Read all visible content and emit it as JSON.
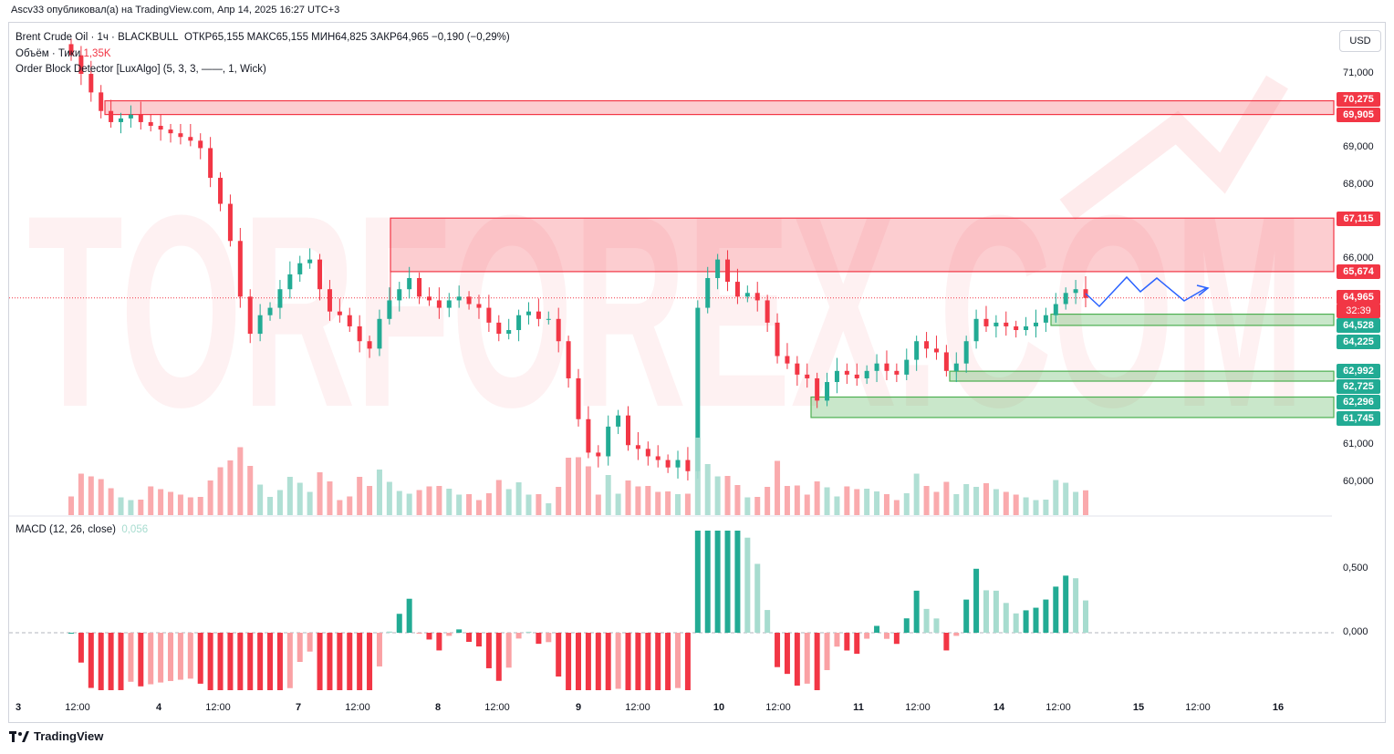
{
  "header": {
    "publisher": "Ascv33 опубликовал(а) на TradingView.com, Апр 14, 2025 16:27 UTC+3"
  },
  "legend": {
    "symbol": "Brent Crude Oil · 1ч · BLACKBULL",
    "ohlc": "ОТКР65,155  МАКС65,155  МИН64,825  ЗАКР64,965  −0,190 (−0,29%)",
    "volume_label": "Объём · Тики",
    "volume_value": "1,35K",
    "indicator": "Order Block Detector [LuxAlgo] (5, 3, 3, ——, 1, Wick)",
    "macd_label": "MACD (12, 26, close)",
    "macd_value": "0,056"
  },
  "currency": "USD",
  "watermark": "TORFOREX.COM",
  "footer": {
    "brand": "TradingView"
  },
  "price_tags": {
    "ob1_top": "70,275",
    "ob1_bottom": "69,905",
    "ob2_top": "67,115",
    "ob2_bottom": "65,674",
    "last_price": "64,965",
    "countdown": "32:39",
    "ob3_top": "64,528",
    "ob3_bottom": "64,225",
    "ob4_top": "62,992",
    "ob4_bottom": "62,725",
    "ob5_top": "62,296",
    "ob5_bottom": "61,745"
  },
  "colors": {
    "bull": "#22ab94",
    "bear": "#f23645",
    "bull_light": "#a7dccf",
    "bear_light": "#faa1a4",
    "ob_red": "#f23645",
    "ob_green": "#4caf50",
    "projection": "#2962ff"
  },
  "chart_data": {
    "type": "candlestick",
    "title": "Brent Crude Oil · 1ч · BLACKBULL",
    "y_axis": {
      "ticks": [
        "71,000",
        "69,000",
        "68,000",
        "66,000",
        "61,000",
        "60,000"
      ],
      "ylim": [
        59.1,
        71.8
      ]
    },
    "x_axis": {
      "ticks": [
        "3",
        "12:00",
        "4",
        "12:00",
        "7",
        "12:00",
        "8",
        "12:00",
        "9",
        "12:00",
        "10",
        "12:00",
        "11",
        "12:00",
        "14",
        "12:00",
        "15",
        "12:00",
        "16"
      ]
    },
    "close_series": [
      71.5,
      71.0,
      70.5,
      70.0,
      69.7,
      69.8,
      69.9,
      69.7,
      69.6,
      69.5,
      69.4,
      69.3,
      69.2,
      69.0,
      68.2,
      67.5,
      66.5,
      65.0,
      64.0,
      64.5,
      64.7,
      65.2,
      65.6,
      65.9,
      66.0,
      65.2,
      64.6,
      64.5,
      64.2,
      63.8,
      63.6,
      64.4,
      64.9,
      65.2,
      65.5,
      65.0,
      64.9,
      64.7,
      64.9,
      65.0,
      64.8,
      64.7,
      64.3,
      64.0,
      64.1,
      64.5,
      64.6,
      64.4,
      64.4,
      63.8,
      62.8,
      61.7,
      60.8,
      60.7,
      61.5,
      61.8,
      61.0,
      60.9,
      60.7,
      60.6,
      60.4,
      60.6,
      60.3,
      64.7,
      65.5,
      66.0,
      65.4,
      65.0,
      65.1,
      64.9,
      64.3,
      63.4,
      63.2,
      62.9,
      62.8,
      62.2,
      62.7,
      63.0,
      62.9,
      62.8,
      63.0,
      63.2,
      63.0,
      62.9,
      63.3,
      63.8,
      63.6,
      63.5,
      63.0,
      63.2,
      63.8,
      64.4,
      64.2,
      64.3,
      64.2,
      64.1,
      64.2,
      64.3,
      64.5,
      64.8,
      65.1,
      65.2,
      64.965
    ],
    "order_blocks": [
      {
        "type": "bearish",
        "top": 70.275,
        "bottom": 69.905
      },
      {
        "type": "bearish",
        "top": 67.115,
        "bottom": 65.674
      },
      {
        "type": "bullish",
        "top": 64.528,
        "bottom": 64.225
      },
      {
        "type": "bullish",
        "top": 62.992,
        "bottom": 62.725
      },
      {
        "type": "bullish",
        "top": 62.296,
        "bottom": 61.745
      }
    ],
    "last_price": 64.965,
    "macd": {
      "ticks": [
        "0,500",
        "0,000"
      ],
      "value": 0.056
    },
    "volume": {
      "last": "1,35K"
    }
  }
}
